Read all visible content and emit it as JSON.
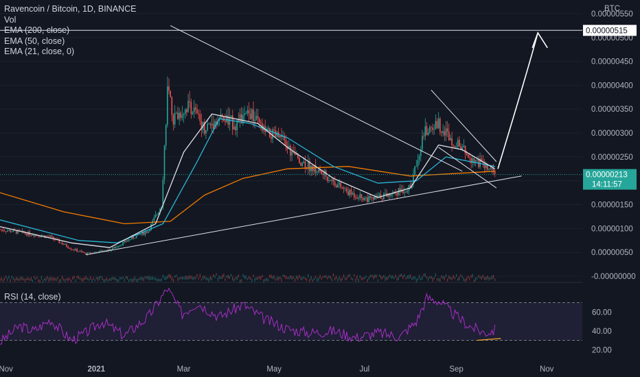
{
  "legend": {
    "title": "Ravencoin / Bitcoin, 1D, BINANCE",
    "vol": "Vol",
    "ema200": "EMA (200, close)",
    "ema50": "EMA (50, close)",
    "ema21": "EMA (21, close, 0)"
  },
  "rsi_label": "RSI (14, close)",
  "currency": "BTC",
  "price_axis": {
    "ticks": [
      "0.00000550",
      "0.00000500",
      "0.00000450",
      "0.00000400",
      "0.00000350",
      "0.00000300",
      "0.00000250",
      "0.00000200",
      "0.00000150",
      "0.00000100",
      "0.00000050",
      "-0.00000000"
    ],
    "tick_values": [
      5.5e-06,
      5e-06,
      4.5e-06,
      4e-06,
      3.5e-06,
      3e-06,
      2.5e-06,
      2e-06,
      1.5e-06,
      1e-06,
      5e-07,
      0
    ],
    "resistance_label": "0.00000515",
    "resistance_value": 5.15e-06,
    "last_price": "0.00000213",
    "last_price_value": 2.13e-06,
    "countdown": "14:11:57",
    "price_color": "#26a69a"
  },
  "rsi_axis": {
    "ticks": [
      "60.00",
      "40.00",
      "20.00"
    ],
    "tick_values": [
      60,
      40,
      20
    ],
    "bands": [
      70,
      30
    ]
  },
  "time_axis": [
    "Nov",
    "2021",
    "Mar",
    "May",
    "Jul",
    "Sep",
    "Nov"
  ],
  "chart_data": {
    "type": "candlestick",
    "pair": "Ravencoin / Bitcoin",
    "interval": "1D",
    "exchange": "BINANCE",
    "x_range": [
      "2020-10-28",
      "2021-11-25"
    ],
    "y_range": [
      -1e-07,
      5.7e-06
    ],
    "close_points": [
      [
        "2020-10-28",
        9.8e-07
      ],
      [
        "2020-11-15",
        9e-07
      ],
      [
        "2020-12-01",
        8.2e-07
      ],
      [
        "2020-12-15",
        5.8e-07
      ],
      [
        "2020-12-25",
        4.7e-07
      ],
      [
        "2021-01-10",
        5.5e-07
      ],
      [
        "2021-01-25",
        8e-07
      ],
      [
        "2021-02-05",
        9.5e-07
      ],
      [
        "2021-02-14",
        1.5e-06
      ],
      [
        "2021-02-18",
        3.9e-06
      ],
      [
        "2021-02-22",
        3.3e-06
      ],
      [
        "2021-03-05",
        3.6e-06
      ],
      [
        "2021-03-15",
        3.1e-06
      ],
      [
        "2021-03-25",
        3.3e-06
      ],
      [
        "2021-04-05",
        3.2e-06
      ],
      [
        "2021-04-15",
        3.4e-06
      ],
      [
        "2021-04-25",
        3e-06
      ],
      [
        "2021-05-05",
        2.9e-06
      ],
      [
        "2021-05-15",
        2.5e-06
      ],
      [
        "2021-05-25",
        2.3e-06
      ],
      [
        "2021-06-05",
        2.1e-06
      ],
      [
        "2021-06-20",
        1.75e-06
      ],
      [
        "2021-07-05",
        1.6e-06
      ],
      [
        "2021-07-20",
        1.75e-06
      ],
      [
        "2021-08-01",
        1.85e-06
      ],
      [
        "2021-08-10",
        3e-06
      ],
      [
        "2021-08-20",
        3.2e-06
      ],
      [
        "2021-08-28",
        2.9e-06
      ],
      [
        "2021-09-10",
        2.5e-06
      ],
      [
        "2021-09-20",
        2.3e-06
      ],
      [
        "2021-09-27",
        2.13e-06
      ]
    ],
    "ema21_points": [
      [
        "2020-10-28",
        1.04e-06
      ],
      [
        "2020-12-15",
        7e-07
      ],
      [
        "2021-01-10",
        6e-07
      ],
      [
        "2021-02-10",
        1.1e-06
      ],
      [
        "2021-03-01",
        2.6e-06
      ],
      [
        "2021-03-20",
        3.4e-06
      ],
      [
        "2021-04-20",
        3.2e-06
      ],
      [
        "2021-05-10",
        2.7e-06
      ],
      [
        "2021-06-10",
        2.05e-06
      ],
      [
        "2021-07-10",
        1.65e-06
      ],
      [
        "2021-08-01",
        1.85e-06
      ],
      [
        "2021-08-20",
        2.75e-06
      ],
      [
        "2021-09-05",
        2.65e-06
      ],
      [
        "2021-09-27",
        2.25e-06
      ]
    ],
    "ema50_points": [
      [
        "2020-10-28",
        1.18e-06
      ],
      [
        "2020-12-20",
        7.5e-07
      ],
      [
        "2021-01-15",
        7e-07
      ],
      [
        "2021-02-15",
        1.1e-06
      ],
      [
        "2021-03-10",
        2.4e-06
      ],
      [
        "2021-03-25",
        3.3e-06
      ],
      [
        "2021-04-15",
        3.2e-06
      ],
      [
        "2021-05-10",
        2.9e-06
      ],
      [
        "2021-06-10",
        2.3e-06
      ],
      [
        "2021-07-10",
        1.95e-06
      ],
      [
        "2021-08-05",
        2e-06
      ],
      [
        "2021-08-25",
        2.5e-06
      ],
      [
        "2021-09-27",
        2.3e-06
      ]
    ],
    "ema200_points": [
      [
        "2020-10-28",
        1.75e-06
      ],
      [
        "2020-12-10",
        1.35e-06
      ],
      [
        "2021-01-20",
        1.1e-06
      ],
      [
        "2021-02-20",
        1.15e-06
      ],
      [
        "2021-03-15",
        1.7e-06
      ],
      [
        "2021-04-10",
        2.05e-06
      ],
      [
        "2021-05-10",
        2.25e-06
      ],
      [
        "2021-06-20",
        2.3e-06
      ],
      [
        "2021-08-01",
        2.1e-06
      ],
      [
        "2021-09-27",
        2.2e-06
      ]
    ],
    "rsi_points": [
      [
        "2020-10-28",
        28
      ],
      [
        "2020-11-10",
        45
      ],
      [
        "2020-11-20",
        40
      ],
      [
        "2020-12-01",
        52
      ],
      [
        "2020-12-15",
        30
      ],
      [
        "2020-12-25",
        38
      ],
      [
        "2021-01-05",
        50
      ],
      [
        "2021-01-20",
        35
      ],
      [
        "2021-02-05",
        55
      ],
      [
        "2021-02-18",
        85
      ],
      [
        "2021-02-28",
        58
      ],
      [
        "2021-03-10",
        70
      ],
      [
        "2021-03-25",
        55
      ],
      [
        "2021-04-10",
        68
      ],
      [
        "2021-04-25",
        52
      ],
      [
        "2021-05-10",
        42
      ],
      [
        "2021-05-25",
        38
      ],
      [
        "2021-06-10",
        40
      ],
      [
        "2021-06-25",
        33
      ],
      [
        "2021-07-10",
        38
      ],
      [
        "2021-07-25",
        34
      ],
      [
        "2021-08-05",
        50
      ],
      [
        "2021-08-12",
        75
      ],
      [
        "2021-08-20",
        72
      ],
      [
        "2021-08-30",
        58
      ],
      [
        "2021-09-10",
        45
      ],
      [
        "2021-09-20",
        38
      ],
      [
        "2021-09-27",
        41
      ]
    ],
    "drawings": {
      "resistance": 5.15e-06,
      "descending_trendline": [
        [
          "2021-02-20",
          5.25e-06
        ],
        [
          "2021-09-05",
          2.2e-06
        ]
      ],
      "ascending_trendline": [
        [
          "2020-12-25",
          4.5e-07
        ],
        [
          "2021-10-15",
          2.1e-06
        ]
      ],
      "wedge_upper": [
        [
          "2021-08-15",
          3.9e-06
        ],
        [
          "2021-09-28",
          2.4e-06
        ]
      ],
      "wedge_lower": [
        [
          "2021-08-20",
          2.7e-06
        ],
        [
          "2021-09-28",
          1.85e-06
        ]
      ],
      "projection_arrow": [
        [
          "2021-09-29",
          2.25e-06
        ],
        [
          "2021-10-20",
          4.4e-06
        ],
        [
          "2021-10-26",
          5.1e-06
        ]
      ],
      "rsi_divergence": [
        [
          "2021-09-15",
          30
        ],
        [
          "2021-10-01",
          32
        ]
      ]
    },
    "colors": {
      "up": "#26a69a",
      "down": "#ef5350",
      "ema21": "#e0e3eb",
      "ema50": "#29b6d6",
      "ema200": "#f57c00",
      "rsi": "#a62fc4",
      "divergence": "#f5a623"
    }
  }
}
